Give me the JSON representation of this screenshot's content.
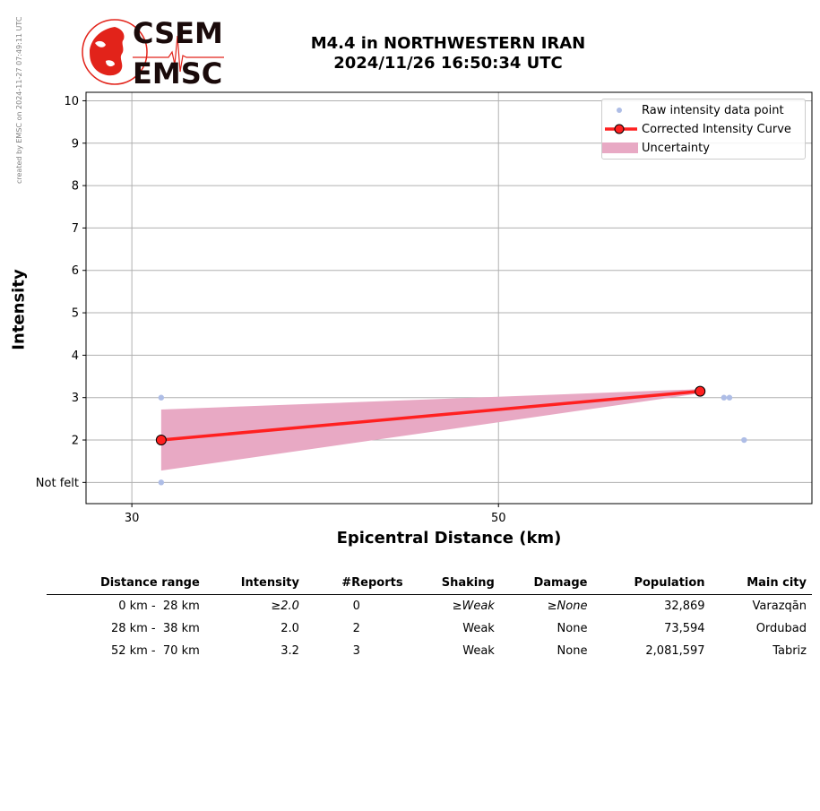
{
  "side_note": "created by EMSC on 2024-11-27 07:49:11 UTC",
  "logo": {
    "top_text": "CSEM",
    "bottom_text": "EMSC",
    "accent": "#e2231a"
  },
  "title": {
    "line1": "M4.4 in NORTHWESTERN IRAN",
    "line2": "2024/11/26 16:50:34 UTC"
  },
  "chart_data": {
    "type": "line",
    "xlabel": "Epicentral Distance (km)",
    "ylabel": "Intensity",
    "xlim": [
      27.5,
      67.1
    ],
    "ylim": [
      0.5,
      10.2
    ],
    "x_ticks": [
      30,
      50
    ],
    "y_ticks": [
      {
        "value": 1,
        "label": "Not felt"
      },
      {
        "value": 2,
        "label": "2"
      },
      {
        "value": 3,
        "label": "3"
      },
      {
        "value": 4,
        "label": "4"
      },
      {
        "value": 5,
        "label": "5"
      },
      {
        "value": 6,
        "label": "6"
      },
      {
        "value": 7,
        "label": "7"
      },
      {
        "value": 8,
        "label": "8"
      },
      {
        "value": 9,
        "label": "9"
      },
      {
        "value": 10,
        "label": "10"
      }
    ],
    "grid": true,
    "legend_position": "top-right",
    "series": [
      {
        "name": "Raw intensity data point",
        "kind": "scatter",
        "color": "#aebde6",
        "points": [
          {
            "x": 31.6,
            "y": 3
          },
          {
            "x": 31.6,
            "y": 1
          },
          {
            "x": 62.3,
            "y": 3
          },
          {
            "x": 62.6,
            "y": 3
          },
          {
            "x": 63.4,
            "y": 2
          }
        ]
      },
      {
        "name": "Corrected Intensity Curve",
        "kind": "line",
        "color": "#ff2020",
        "points": [
          {
            "x": 31.6,
            "y": 2.0
          },
          {
            "x": 61.0,
            "y": 3.15
          }
        ]
      },
      {
        "name": "Uncertainty",
        "kind": "band",
        "color": "#e8a9c4",
        "points": [
          {
            "x": 31.6,
            "low": 1.28,
            "high": 2.72
          },
          {
            "x": 61.0,
            "low": 3.1,
            "high": 3.2
          }
        ]
      }
    ]
  },
  "table": {
    "headers": [
      "Distance range",
      "Intensity",
      "#Reports",
      "Shaking",
      "Damage",
      "Population",
      "Main city"
    ],
    "rows": [
      {
        "range_from": "0 km -",
        "range_to": "28 km",
        "intensity": "≥2.0",
        "reports": "0",
        "shaking": "≥Weak",
        "damage": "≥None",
        "population": "32,869",
        "city": "Varazqān",
        "italic": true
      },
      {
        "range_from": "28 km -",
        "range_to": "38 km",
        "intensity": "2.0",
        "reports": "2",
        "shaking": "Weak",
        "damage": "None",
        "population": "73,594",
        "city": "Ordubad",
        "italic": false
      },
      {
        "range_from": "52 km -",
        "range_to": "70 km",
        "intensity": "3.2",
        "reports": "3",
        "shaking": "Weak",
        "damage": "None",
        "population": "2,081,597",
        "city": "Tabriz",
        "italic": false
      }
    ]
  }
}
